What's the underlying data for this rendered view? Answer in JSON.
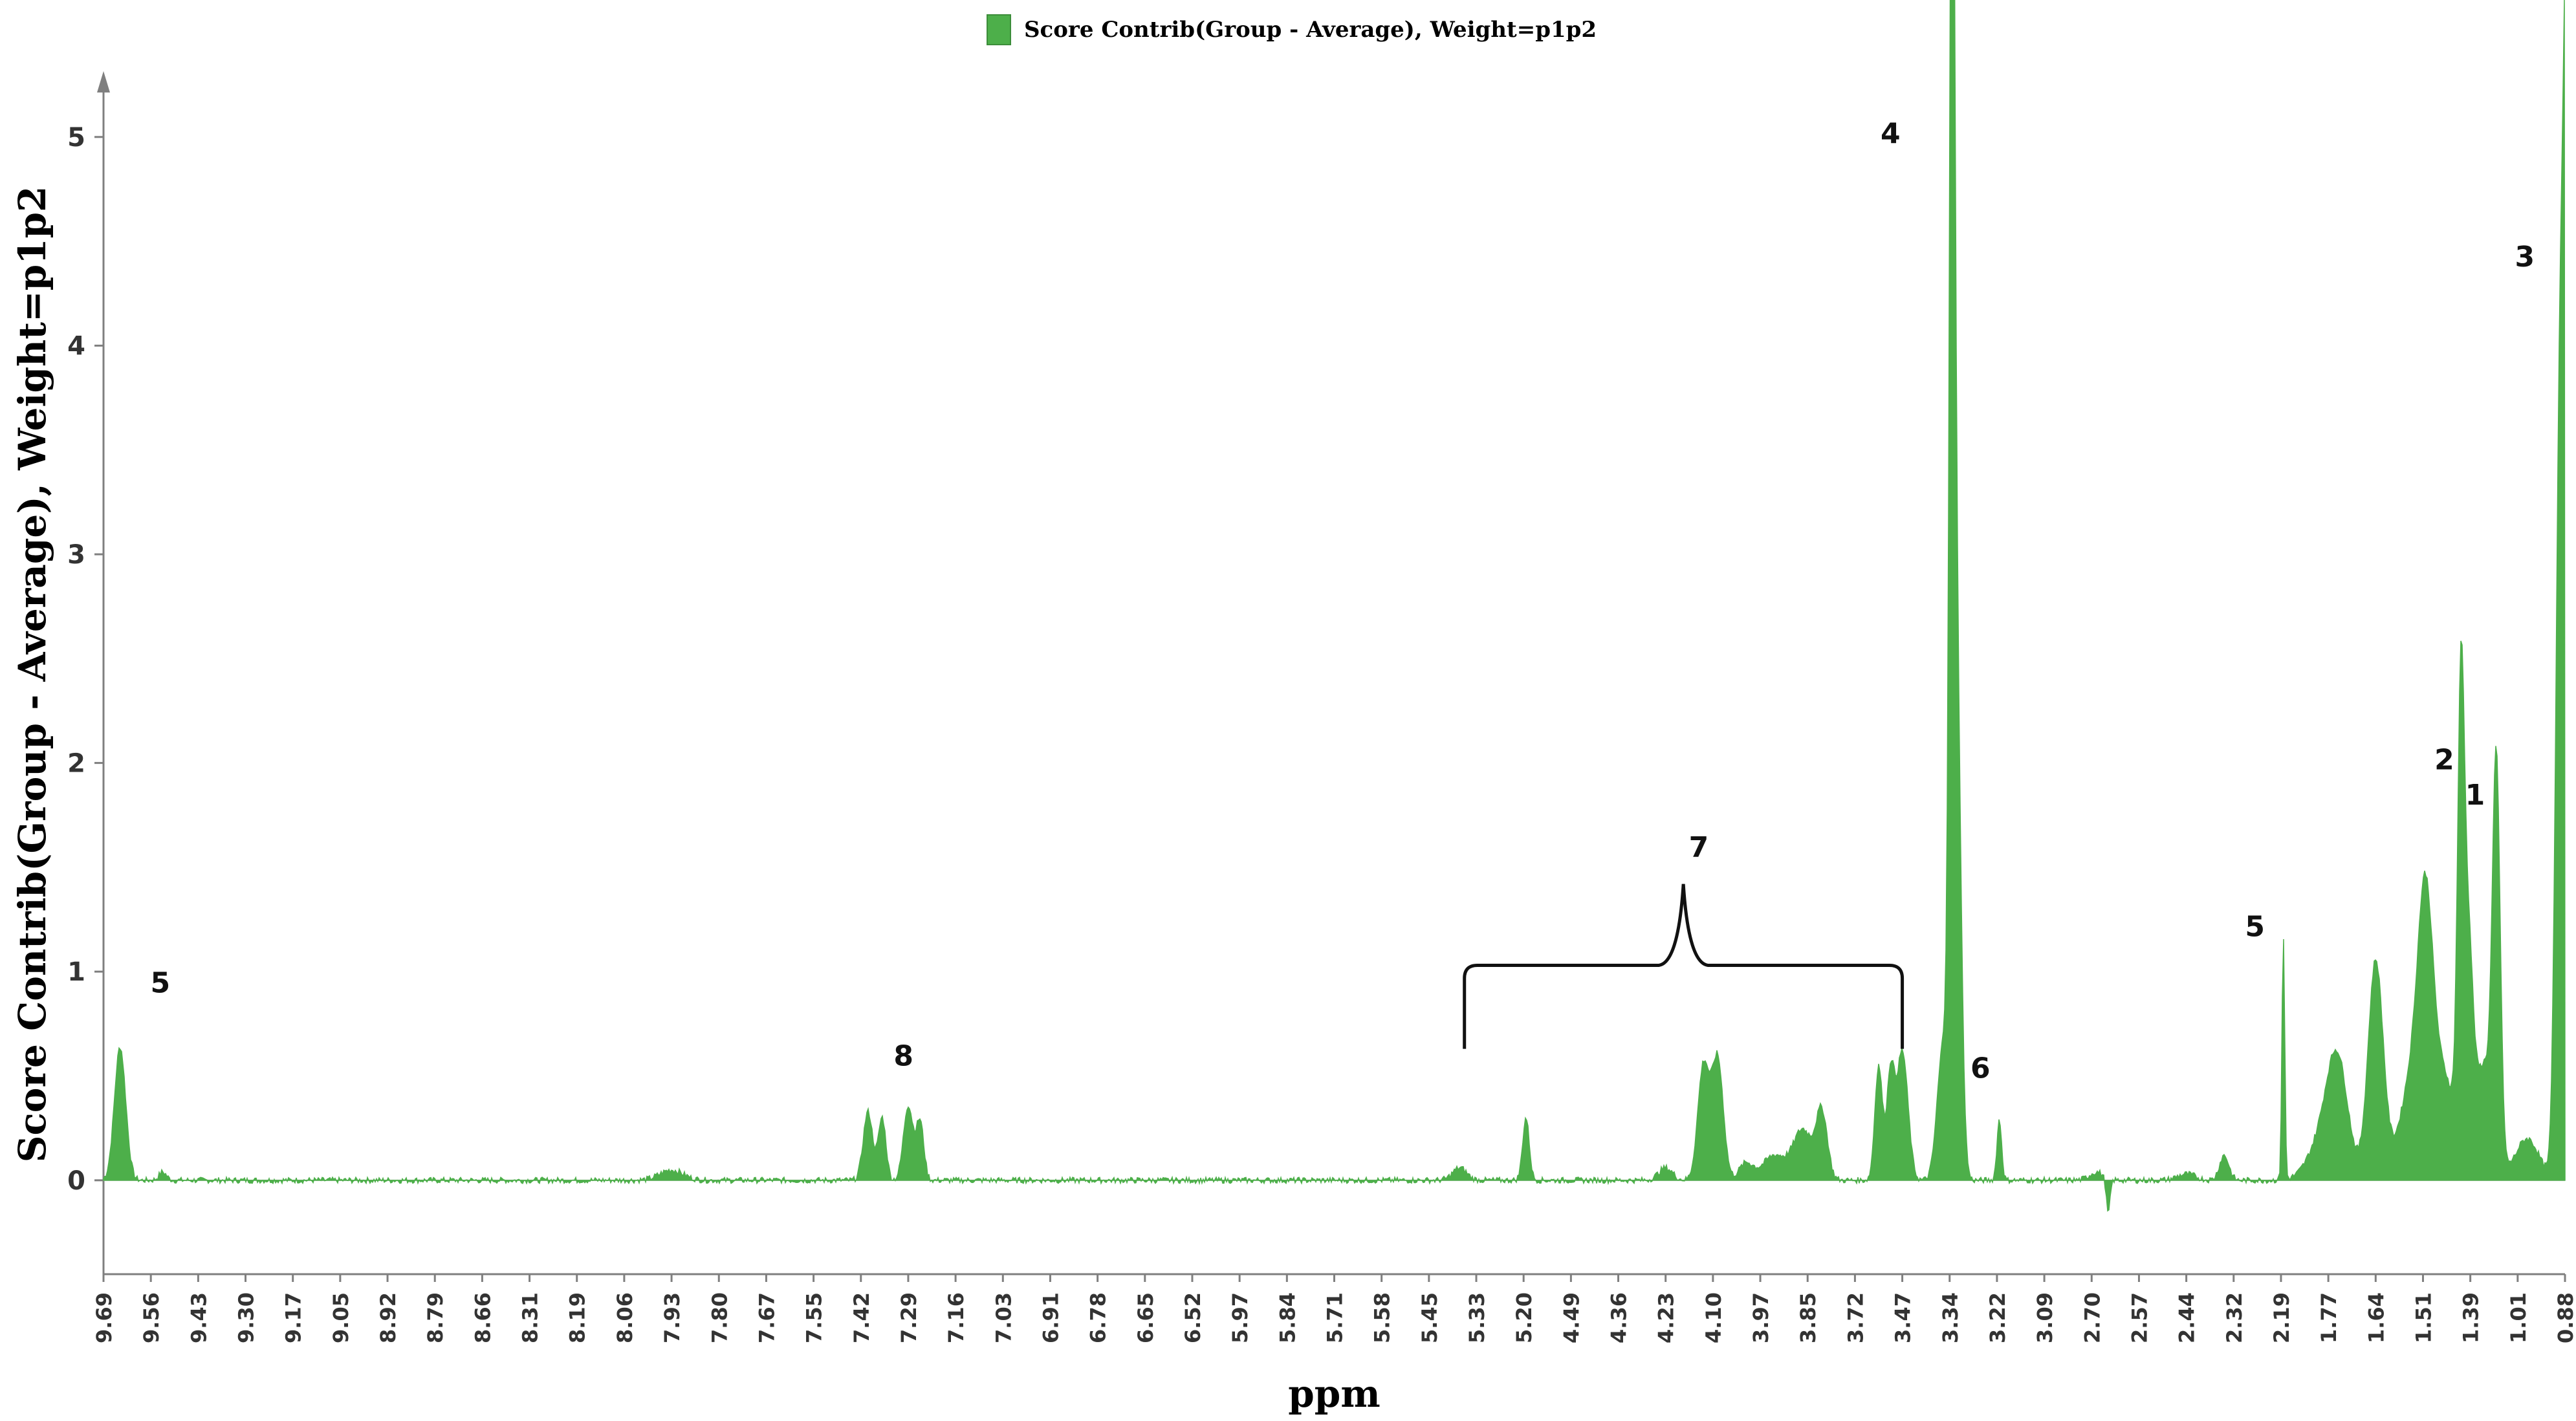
{
  "legend": {
    "label": "Score Contrib(Group - Average), Weight=p1p2",
    "color": "#4daf4a"
  },
  "chart_data": {
    "type": "area",
    "title": "",
    "xlabel": "ppm",
    "ylabel": "Score Contrib(Group - Average), Weight=p1p2",
    "ylim": [
      -0.45,
      5.3
    ],
    "y_ticks": [
      0,
      1,
      2,
      3,
      4,
      5
    ],
    "x_reversed": true,
    "x_tick_labels": [
      "9.69",
      "9.56",
      "9.43",
      "9.30",
      "9.17",
      "9.05",
      "8.92",
      "8.79",
      "8.66",
      "8.31",
      "8.19",
      "8.06",
      "7.93",
      "7.80",
      "7.67",
      "7.55",
      "7.42",
      "7.29",
      "7.16",
      "7.03",
      "6.91",
      "6.78",
      "6.65",
      "6.52",
      "5.97",
      "5.84",
      "5.71",
      "5.58",
      "5.45",
      "5.33",
      "5.20",
      "4.49",
      "4.36",
      "4.23",
      "4.10",
      "3.97",
      "3.85",
      "3.72",
      "3.47",
      "3.34",
      "3.22",
      "3.09",
      "2.70",
      "2.57",
      "2.44",
      "2.32",
      "2.19",
      "1.77",
      "1.64",
      "1.51",
      "1.39",
      "1.01",
      "0.88"
    ],
    "series": [
      {
        "name": "Score Contrib(Group - Average), Weight=p1p2",
        "color": "#4daf4a",
        "baseline_noise": 0.015,
        "peaks": [
          {
            "x_label": "9.69",
            "offset": 0.35,
            "y": 0.64,
            "w": 0.12
          },
          {
            "x_label": "9.56",
            "offset": 0.25,
            "y": 0.04,
            "w": 0.08
          },
          {
            "x_label": "7.93",
            "offset": 0.0,
            "y": 0.05,
            "w": 0.25
          },
          {
            "x_label": "7.42",
            "offset": 0.15,
            "y": 0.33,
            "w": 0.1
          },
          {
            "x_label": "7.42",
            "offset": 0.45,
            "y": 0.3,
            "w": 0.08
          },
          {
            "x_label": "7.29",
            "offset": 0.0,
            "y": 0.36,
            "w": 0.1
          },
          {
            "x_label": "7.29",
            "offset": 0.25,
            "y": 0.28,
            "w": 0.08
          },
          {
            "x_label": "5.33",
            "offset": -0.35,
            "y": 0.06,
            "w": 0.15
          },
          {
            "x_label": "5.20",
            "offset": 0.05,
            "y": 0.3,
            "w": 0.07
          },
          {
            "x_label": "4.23",
            "offset": 0.0,
            "y": 0.06,
            "w": 0.15
          },
          {
            "x_label": "4.10",
            "offset": -0.2,
            "y": 0.55,
            "w": 0.12
          },
          {
            "x_label": "4.10",
            "offset": 0.1,
            "y": 0.58,
            "w": 0.12
          },
          {
            "x_label": "3.97",
            "offset": -0.3,
            "y": 0.08,
            "w": 0.15
          },
          {
            "x_label": "3.97",
            "offset": 0.3,
            "y": 0.12,
            "w": 0.25
          },
          {
            "x_label": "3.85",
            "offset": -0.1,
            "y": 0.24,
            "w": 0.2
          },
          {
            "x_label": "3.85",
            "offset": 0.3,
            "y": 0.32,
            "w": 0.12
          },
          {
            "x_label": "3.72",
            "offset": 0.5,
            "y": 0.55,
            "w": 0.08
          },
          {
            "x_label": "3.72",
            "offset": 0.75,
            "y": 0.5,
            "w": 0.08
          },
          {
            "x_label": "3.47",
            "offset": 0.0,
            "y": 0.62,
            "w": 0.12
          },
          {
            "x_label": "3.34",
            "offset": -0.15,
            "y": 0.6,
            "w": 0.12
          },
          {
            "x_label": "3.34",
            "offset": 0.05,
            "y": 5.2,
            "w": 0.05
          },
          {
            "x_label": "3.34",
            "offset": 0.12,
            "y": 3.0,
            "w": 0.1
          },
          {
            "x_label": "3.22",
            "offset": 0.05,
            "y": 0.29,
            "w": 0.05
          },
          {
            "x_label": "2.70",
            "offset": 0.1,
            "y": 0.04,
            "w": 0.15
          },
          {
            "x_label": "2.70",
            "offset": 0.35,
            "y": -0.17,
            "w": 0.04
          },
          {
            "x_label": "2.44",
            "offset": 0.0,
            "y": 0.03,
            "w": 0.2
          },
          {
            "x_label": "2.32",
            "offset": -0.2,
            "y": 0.12,
            "w": 0.1
          },
          {
            "x_label": "2.19",
            "offset": 0.05,
            "y": 1.16,
            "w": 0.03
          },
          {
            "x_label": "1.77",
            "offset": 0.2,
            "y": 0.5,
            "w": 0.22
          },
          {
            "x_label": "1.77",
            "offset": -0.1,
            "y": 0.2,
            "w": 0.3
          },
          {
            "x_label": "1.64",
            "offset": 0.0,
            "y": 1.05,
            "w": 0.16
          },
          {
            "x_label": "1.51",
            "offset": -0.15,
            "y": 0.55,
            "w": 0.3
          },
          {
            "x_label": "1.51",
            "offset": 0.05,
            "y": 0.85,
            "w": 0.15
          },
          {
            "x_label": "1.51",
            "offset": 0.45,
            "y": 0.45,
            "w": 0.3
          },
          {
            "x_label": "1.39",
            "offset": -0.2,
            "y": 2.0,
            "w": 0.07
          },
          {
            "x_label": "1.39",
            "offset": -0.05,
            "y": 1.0,
            "w": 0.1
          },
          {
            "x_label": "1.39",
            "offset": 0.3,
            "y": 0.55,
            "w": 0.2
          },
          {
            "x_label": "1.01",
            "offset": -0.45,
            "y": 1.82,
            "w": 0.08
          },
          {
            "x_label": "1.01",
            "offset": 0.2,
            "y": 0.2,
            "w": 0.25
          },
          {
            "x_label": "0.88",
            "offset": -0.1,
            "y": 3.9,
            "w": 0.09
          },
          {
            "x_label": "0.88",
            "offset": 0.05,
            "y": 4.5,
            "w": 0.07
          },
          {
            "x_label": "0.88",
            "offset": 0.3,
            "y": 2.9,
            "w": 0.14
          }
        ]
      }
    ],
    "annotations": [
      {
        "text": "5",
        "x_label": "9.56",
        "offset": 0.2,
        "y": 0.9
      },
      {
        "text": "8",
        "x_label": "7.29",
        "offset": -0.1,
        "y": 0.55
      },
      {
        "text": "7",
        "x_label": "4.10",
        "offset": -0.3,
        "y": 1.55
      },
      {
        "text": "4",
        "x_label": "3.34",
        "offset": -1.25,
        "y": 4.97
      },
      {
        "text": "6",
        "x_label": "3.22",
        "offset": -0.35,
        "y": 0.49
      },
      {
        "text": "5",
        "x_label": "2.19",
        "offset": -0.55,
        "y": 1.17
      },
      {
        "text": "2",
        "x_label": "1.39",
        "offset": -0.55,
        "y": 1.97
      },
      {
        "text": "1",
        "x_label": "1.39",
        "offset": 0.1,
        "y": 1.8
      },
      {
        "text": "3",
        "x_label": "1.01",
        "offset": 0.15,
        "y": 4.38
      }
    ],
    "bracket": {
      "x_start_label": "5.33",
      "x_start_offset": -0.25,
      "x_end_label": "3.47",
      "x_end_offset": 0.0,
      "y_top": 1.03,
      "y_bottom": 0.63,
      "y_apex": 1.42
    }
  }
}
